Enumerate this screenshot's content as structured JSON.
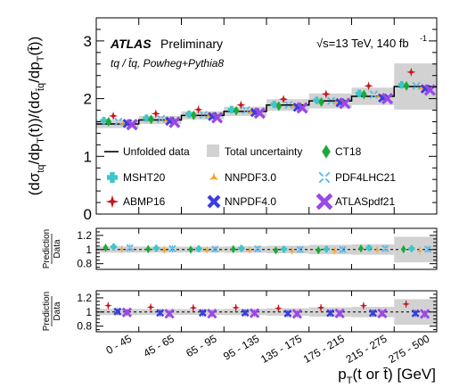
{
  "chart_data": {
    "type": "line",
    "header": {
      "experiment": "ATLAS",
      "status": "Preliminary",
      "energy": "√s=13 TeV, 140 fb",
      "energy_sup": "-1",
      "process": "tq / t̄q, Powheg+Pythia8"
    },
    "xlabel": "p",
    "xlabel_sub": "T",
    "xlabel_rest": "(t or t̄) [GeV]",
    "ylabel": "(dσtq/dpT(t))/(dσt̄q/dpT(t̄))",
    "ratio_ylabel_top": "Prediction",
    "ratio_ylabel_bottom": "Data",
    "categories": [
      "0 - 45",
      "45 - 65",
      "65 - 95",
      "95 - 135",
      "135 - 175",
      "175 - 215",
      "215 - 275",
      "275 - 500"
    ],
    "main_ylim": [
      0,
      3.4
    ],
    "main_yticks": [
      "0",
      "1",
      "2",
      "3"
    ],
    "ratio_ylim": [
      0.72,
      1.3
    ],
    "ratio_yticks": [
      "0.8",
      "1",
      "1.2"
    ],
    "data": [
      1.56,
      1.63,
      1.71,
      1.78,
      1.89,
      1.96,
      2.04,
      2.21
    ],
    "total_uncertainty": [
      0.07,
      0.07,
      0.07,
      0.08,
      0.1,
      0.13,
      0.15,
      0.4
    ],
    "series": [
      {
        "name": "CT18",
        "values": [
          1.6,
          1.64,
          1.71,
          1.79,
          1.87,
          1.94,
          2.07,
          2.22
        ]
      },
      {
        "name": "MSHT20",
        "values": [
          1.62,
          1.66,
          1.73,
          1.81,
          1.9,
          1.97,
          2.09,
          2.24
        ]
      },
      {
        "name": "NNPDF3.0",
        "values": [
          1.57,
          1.62,
          1.7,
          1.77,
          1.86,
          1.93,
          2.04,
          2.18
        ]
      },
      {
        "name": "PDF4LHC21",
        "values": [
          1.6,
          1.65,
          1.72,
          1.8,
          1.89,
          1.96,
          2.07,
          2.22
        ]
      },
      {
        "name": "ABMP16",
        "values": [
          1.7,
          1.74,
          1.81,
          1.89,
          1.99,
          2.08,
          2.22,
          2.46
        ]
      },
      {
        "name": "NNPDF4.0",
        "values": [
          1.57,
          1.61,
          1.69,
          1.76,
          1.85,
          1.93,
          2.01,
          2.17
        ]
      },
      {
        "name": "ATLASpdf21",
        "values": [
          1.55,
          1.59,
          1.67,
          1.75,
          1.84,
          1.92,
          2.0,
          2.15
        ]
      }
    ],
    "legend": {
      "row1": [
        "Unfolded data",
        "Total uncertainty",
        "CT18"
      ],
      "row2": [
        "MSHT20",
        "NNPDF3.0",
        "PDF4LHC21"
      ],
      "row3": [
        "ABMP16",
        "NNPDF4.0",
        "ATLASpdf21"
      ]
    },
    "colors": {
      "CT18": "#1fa83a",
      "MSHT20": "#3ec6c8",
      "NNPDF3.0": "#f4a21d",
      "PDF4LHC21": "#5ab8ec",
      "ABMP16": "#c4161c",
      "NNPDF4.0": "#3a3de0",
      "ATLASpdf21": "#9a48e6",
      "band": "#d2d2d2"
    },
    "ratio_panel_1": [
      "CT18",
      "MSHT20",
      "NNPDF3.0",
      "PDF4LHC21"
    ],
    "ratio_panel_2": [
      "ABMP16",
      "NNPDF4.0",
      "ATLASpdf21"
    ]
  }
}
